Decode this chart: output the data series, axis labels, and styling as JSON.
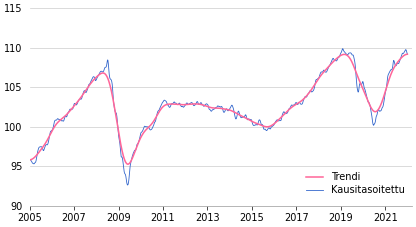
{
  "xlim": [
    2005.0,
    2022.2
  ],
  "ylim": [
    90,
    115
  ],
  "yticks": [
    90,
    95,
    100,
    105,
    110,
    115
  ],
  "xticks": [
    2005,
    2007,
    2009,
    2011,
    2013,
    2015,
    2017,
    2019,
    2021
  ],
  "trend_color": "#ff6699",
  "seasonal_color": "#3366cc",
  "background_color": "#ffffff",
  "grid_color": "#cccccc",
  "legend_labels": [
    "Trendi",
    "Kausitasoitettu"
  ],
  "figsize": [
    4.16,
    2.27
  ],
  "dpi": 100,
  "trend_linewidth": 1.1,
  "seasonal_linewidth": 0.6,
  "font_size": 7.0
}
